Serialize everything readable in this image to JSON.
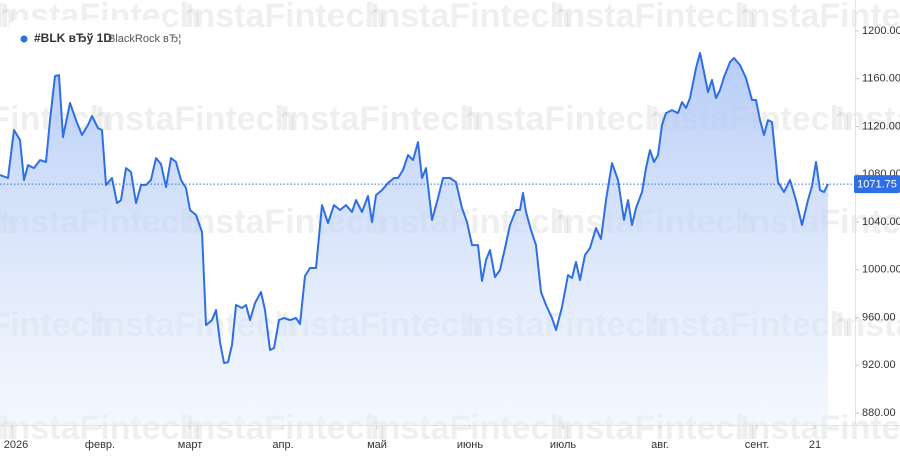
{
  "chart_data": {
    "type": "area",
    "legend": {
      "symbol": "#BLK вЂў 1D",
      "name": "BlackRock вЂ¦"
    },
    "watermark": "InstaFintech",
    "color": "#2f6fe4",
    "x": [
      0,
      8,
      14,
      20,
      24,
      28,
      34,
      40,
      46,
      50,
      55,
      59,
      63,
      70,
      76,
      82,
      88,
      92,
      98,
      102,
      106,
      112,
      117,
      121,
      126,
      131,
      136,
      141,
      146,
      151,
      156,
      161,
      166,
      171,
      176,
      181,
      186,
      190,
      196,
      202,
      206,
      212,
      216,
      220,
      224,
      228,
      232,
      236,
      242,
      246,
      250,
      255,
      261,
      265,
      270,
      274,
      279,
      284,
      290,
      296,
      300,
      305,
      310,
      316,
      322,
      328,
      334,
      340,
      346,
      352,
      356,
      362,
      368,
      372,
      376,
      382,
      388,
      394,
      398,
      403,
      408,
      413,
      418,
      422,
      426,
      432,
      438,
      443,
      450,
      456,
      462,
      467,
      472,
      478,
      482,
      486,
      490,
      495,
      500,
      505,
      510,
      516,
      520,
      523,
      526,
      531,
      536,
      541,
      546,
      552,
      556,
      562,
      568,
      572,
      576,
      580,
      585,
      590,
      596,
      601,
      606,
      612,
      618,
      624,
      628,
      632,
      636,
      642,
      646,
      650,
      654,
      658,
      662,
      666,
      672,
      678,
      682,
      686,
      690,
      696,
      700,
      704,
      708,
      712,
      716,
      720,
      724,
      730,
      734,
      740,
      746,
      752,
      756,
      760,
      764,
      768,
      772,
      778,
      784,
      790,
      796,
      802,
      808,
      812,
      816,
      820,
      824,
      828
    ],
    "values": [
      1079.4,
      1076.9,
      1117.1,
      1108.7,
      1075.2,
      1087.7,
      1085.2,
      1091.9,
      1090.3,
      1125.4,
      1162.3,
      1163.1,
      1111.2,
      1139.7,
      1125.4,
      1112.9,
      1121.3,
      1128.8,
      1118.7,
      1117.1,
      1071.0,
      1076.9,
      1055.9,
      1058.4,
      1085.2,
      1081.9,
      1055.9,
      1071.0,
      1071.0,
      1075.2,
      1093.6,
      1088.6,
      1069.3,
      1093.6,
      1090.3,
      1075.2,
      1068.5,
      1050.1,
      1045.9,
      1031.6,
      953.7,
      957.9,
      966.3,
      939.5,
      921.9,
      922.7,
      937.0,
      970.5,
      968.0,
      970.5,
      957.9,
      972.1,
      981.4,
      966.3,
      932.8,
      934.4,
      957.9,
      959.6,
      957.9,
      959.6,
      954.5,
      994.8,
      1001.5,
      1001.5,
      1054.2,
      1039.2,
      1054.2,
      1050.1,
      1054.2,
      1048.4,
      1058.4,
      1048.4,
      1061.8,
      1040.0,
      1062.6,
      1066.8,
      1072.7,
      1076.9,
      1076.9,
      1083.6,
      1096.1,
      1091.9,
      1107.0,
      1076.9,
      1085.2,
      1041.7,
      1060.1,
      1076.9,
      1076.9,
      1073.5,
      1051.7,
      1040.0,
      1020.7,
      1020.7,
      990.6,
      1008.2,
      1016.5,
      993.9,
      999.8,
      1018.2,
      1037.5,
      1050.1,
      1050.1,
      1064.3,
      1048.4,
      1033.3,
      1020.7,
      981.4,
      970.5,
      959.6,
      949.5,
      968.8,
      995.6,
      993.1,
      1006.5,
      991.4,
      1012.4,
      1018.2,
      1035.0,
      1025.8,
      1058.4,
      1089.4,
      1075.2,
      1041.7,
      1058.4,
      1037.5,
      1051.7,
      1065.1,
      1085.2,
      1100.3,
      1090.3,
      1096.1,
      1121.3,
      1131.3,
      1133.8,
      1131.3,
      1140.5,
      1135.5,
      1143.9,
      1169.0,
      1181.6,
      1165.7,
      1148.9,
      1159.0,
      1143.9,
      1150.6,
      1161.5,
      1174.0,
      1177.4,
      1171.5,
      1160.6,
      1142.2,
      1142.2,
      1125.4,
      1112.9,
      1125.4,
      1123.8,
      1073.5,
      1065.1,
      1075.2,
      1058.4,
      1037.5,
      1058.4,
      1070.2,
      1090.3,
      1066.8,
      1065.1,
      1071.75
    ],
    "current_value": 1071.75,
    "xlim": [
      0,
      855
    ],
    "ylim": [
      870,
      1226
    ],
    "xticks": [
      {
        "value": 12,
        "label": "2026"
      },
      {
        "value": 100,
        "label": "февр."
      },
      {
        "value": 190,
        "label": "март"
      },
      {
        "value": 283,
        "label": "апр."
      },
      {
        "value": 377,
        "label": "май"
      },
      {
        "value": 470,
        "label": "июнь"
      },
      {
        "value": 563,
        "label": "июль"
      },
      {
        "value": 660,
        "label": "авг."
      },
      {
        "value": 757,
        "label": "сент."
      },
      {
        "value": 815,
        "label": "21"
      }
    ],
    "yticks": [
      {
        "value": 1200,
        "label": "1200.00"
      },
      {
        "value": 1160,
        "label": "1160.00"
      },
      {
        "value": 1120,
        "label": "1120.00"
      },
      {
        "value": 1080,
        "label": "1080.00"
      },
      {
        "value": 1040,
        "label": "1040.00"
      },
      {
        "value": 1000,
        "label": "1000.00"
      },
      {
        "value": 960,
        "label": "960.00"
      },
      {
        "value": 920,
        "label": "920.00"
      },
      {
        "value": 880,
        "label": "880.00"
      }
    ]
  }
}
